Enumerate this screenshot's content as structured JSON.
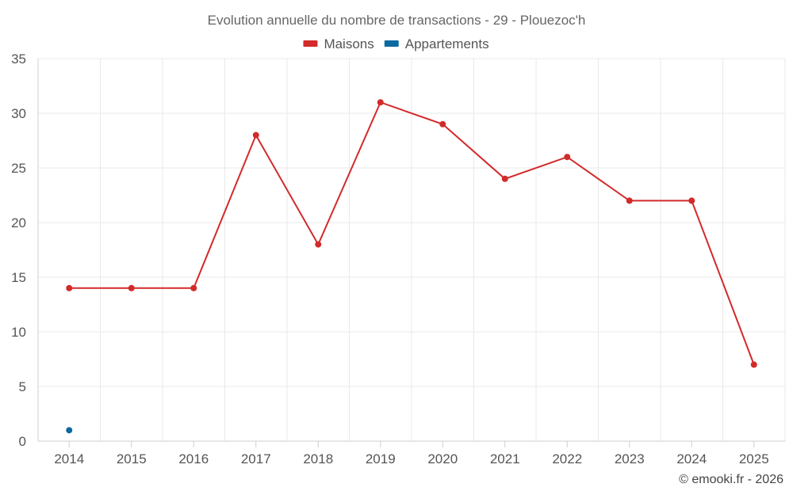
{
  "chart_data": {
    "type": "line",
    "title": "Evolution annuelle du nombre de transactions - 29 - Plouezoc'h",
    "categories": [
      "2014",
      "2015",
      "2016",
      "2017",
      "2018",
      "2019",
      "2020",
      "2021",
      "2022",
      "2023",
      "2024",
      "2025"
    ],
    "series": [
      {
        "name": "Maisons",
        "color": "#d32a2a",
        "values": [
          14,
          14,
          14,
          28,
          18,
          31,
          29,
          24,
          26,
          22,
          22,
          7
        ]
      },
      {
        "name": "Appartements",
        "color": "#0b6aa0",
        "values": [
          1,
          null,
          null,
          null,
          null,
          null,
          null,
          null,
          null,
          null,
          null,
          null
        ]
      }
    ],
    "ylim": [
      0,
      35
    ],
    "yticks": [
      0,
      5,
      10,
      15,
      20,
      25,
      30,
      35
    ],
    "xlabel": "",
    "ylabel": "",
    "grid": true,
    "legend_position": "top-center"
  },
  "credit": "© emooki.fr - 2026"
}
